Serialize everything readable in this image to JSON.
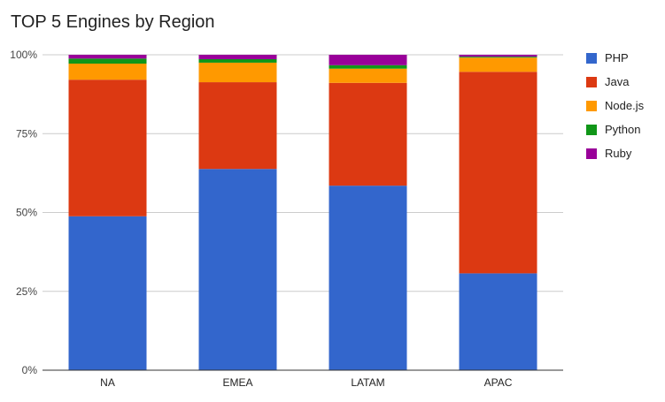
{
  "chart_data": {
    "type": "bar",
    "stacked": true,
    "percent": true,
    "title": "TOP 5 Engines by Region",
    "categories": [
      "NA",
      "EMEA",
      "LATAM",
      "APAC"
    ],
    "series": [
      {
        "name": "PHP",
        "color": "#3366cc",
        "values": [
          48.8,
          63.8,
          58.5,
          30.7
        ]
      },
      {
        "name": "Java",
        "color": "#dc3912",
        "values": [
          43.3,
          27.5,
          32.6,
          63.9
        ]
      },
      {
        "name": "Node.js",
        "color": "#ff9900",
        "values": [
          5.1,
          6.2,
          4.5,
          4.5
        ]
      },
      {
        "name": "Python",
        "color": "#109618",
        "values": [
          1.6,
          1.1,
          1.1,
          0.3
        ]
      },
      {
        "name": "Ruby",
        "color": "#990099",
        "values": [
          1.2,
          1.4,
          3.3,
          0.6
        ]
      }
    ],
    "y_ticks": [
      "0%",
      "25%",
      "50%",
      "75%",
      "100%"
    ],
    "ylim": [
      0,
      100
    ],
    "grid": true,
    "legend_position": "right"
  }
}
